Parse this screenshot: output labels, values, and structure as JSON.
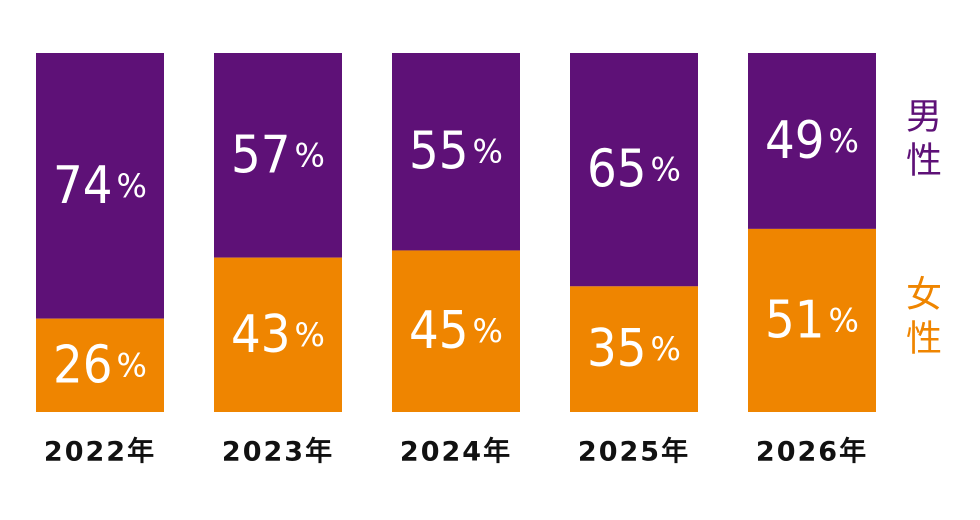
{
  "chart_data": {
    "type": "bar",
    "stacked": true,
    "percent": true,
    "categories": [
      "2022年",
      "2023年",
      "2024年",
      "2025年",
      "2026年"
    ],
    "series": [
      {
        "name": "男性",
        "values": [
          74,
          57,
          55,
          65,
          49
        ],
        "color": "#5e1177"
      },
      {
        "name": "女性",
        "values": [
          26,
          43,
          45,
          35,
          51
        ],
        "color": "#ef8500"
      }
    ],
    "value_suffix": "%",
    "ylim": [
      0,
      100
    ],
    "grid": false,
    "legend_position": "right"
  }
}
